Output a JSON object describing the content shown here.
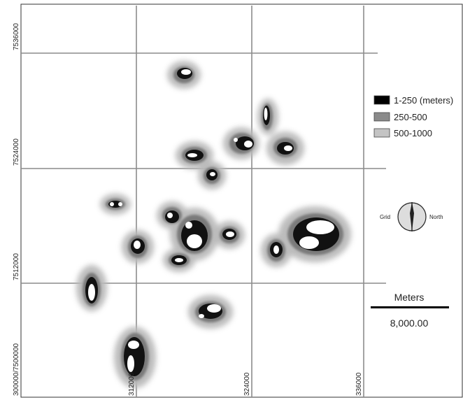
{
  "map": {
    "grid_x_labels": [
      "312000",
      "324000",
      "336000"
    ],
    "grid_y_labels": [
      "7536000",
      "7524000",
      "7512000"
    ],
    "origin_label": "300000/7500000"
  },
  "legend": {
    "items": [
      {
        "label": "1-250 (meters)",
        "color": "#000000"
      },
      {
        "label": "250-500",
        "color": "#8a8a8a"
      },
      {
        "label": "500-1000",
        "color": "#c4c4c4"
      }
    ]
  },
  "north_arrow": {
    "grid_label": "Grid",
    "north_label": "North"
  },
  "scale_bar": {
    "title": "Meters",
    "value": "8,000.00"
  }
}
